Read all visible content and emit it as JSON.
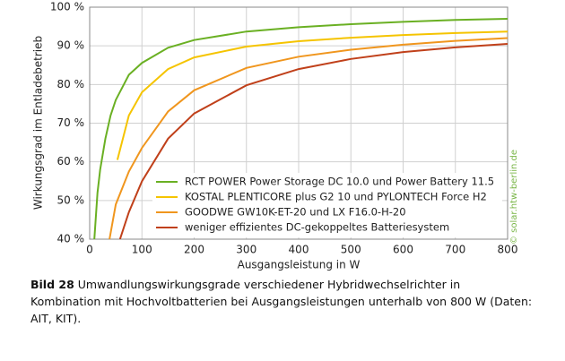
{
  "chart_data": {
    "type": "line",
    "xlabel": "Ausgangsleistung in W",
    "ylabel": "Wirkungsgrad im Entladebetrieb",
    "xlim": [
      0,
      800
    ],
    "xticks": [
      0,
      100,
      200,
      300,
      400,
      500,
      600,
      700,
      800
    ],
    "ylim": [
      40,
      100
    ],
    "yticks": [
      {
        "value": 40,
        "label": "40 %"
      },
      {
        "value": 50,
        "label": "50 %"
      },
      {
        "value": 60,
        "label": "60 %"
      },
      {
        "value": 70,
        "label": "70 %"
      },
      {
        "value": 80,
        "label": "80 %"
      },
      {
        "value": 90,
        "label": "90 %"
      },
      {
        "value": 100,
        "label": "100 %"
      }
    ],
    "grid": true,
    "legend": "lower right",
    "annotation": "© solar.htw-berlin.de",
    "series": [
      {
        "name": "RCT POWER Power Storage DC 10.0 und Power Battery 11.5",
        "color": "#6ab023",
        "x": [
          9,
          15,
          20,
          30,
          40,
          50,
          75,
          100,
          150,
          200,
          300,
          400,
          500,
          600,
          700,
          800
        ],
        "values": [
          40,
          52,
          58,
          66,
          72,
          76,
          82.5,
          85.6,
          89.5,
          91.5,
          93.7,
          94.8,
          95.6,
          96.2,
          96.7,
          97
        ]
      },
      {
        "name": "KOSTAL PLENTICORE plus G2 10 und PYLONTECH Force H2",
        "color": "#f5c400",
        "x": [
          53,
          75,
          100,
          150,
          200,
          300,
          400,
          500,
          600,
          700,
          800
        ],
        "values": [
          60.5,
          72,
          78,
          84,
          87,
          89.8,
          91.2,
          92.1,
          92.8,
          93.3,
          93.7
        ]
      },
      {
        "name": "GOODWE GW10K-ET-20 und LX F16.0-H-20",
        "color": "#f0961e",
        "x": [
          38,
          50,
          75,
          100,
          150,
          200,
          300,
          400,
          500,
          600,
          700,
          800
        ],
        "values": [
          40,
          49,
          57.5,
          63.6,
          73,
          78.5,
          84.3,
          87.2,
          89,
          90.3,
          91.3,
          92
        ]
      },
      {
        "name": "weniger effizientes DC-gekoppeltes Batteriesystem",
        "color": "#c0401a",
        "x": [
          58,
          75,
          100,
          150,
          200,
          300,
          400,
          500,
          600,
          700,
          800
        ],
        "values": [
          40,
          47,
          55,
          66,
          72.5,
          79.8,
          84,
          86.6,
          88.4,
          89.6,
          90.5
        ]
      }
    ]
  },
  "caption": {
    "label": "Bild 28",
    "text": "Umwandlungswirkungsgrade verschiedener Hybridwechselrichter in Kombination mit Hochvoltbatterien bei Ausgangsleistungen unterhalb von 800 W (Daten: AIT, KIT)."
  }
}
